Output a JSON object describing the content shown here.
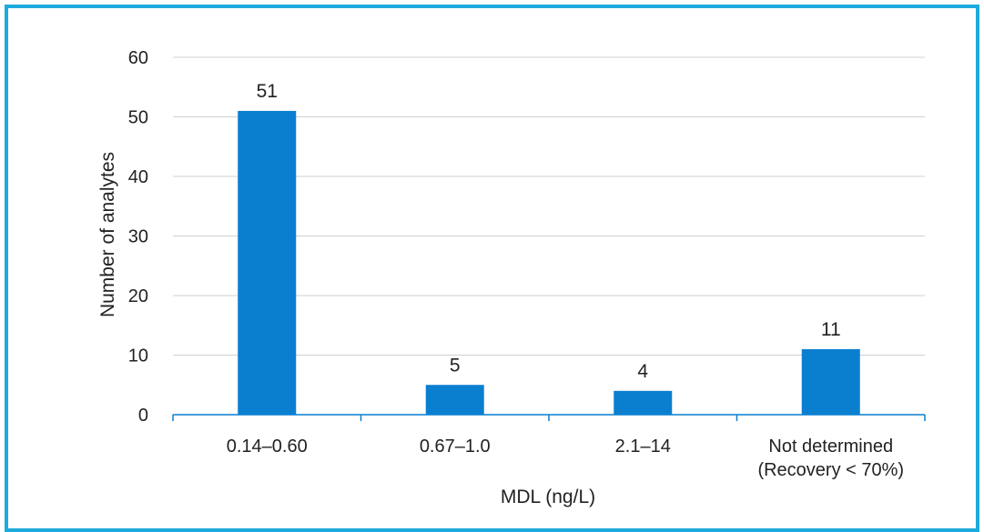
{
  "chart_data": {
    "type": "bar",
    "categories": [
      [
        "0.14–0.60"
      ],
      [
        "0.67–1.0"
      ],
      [
        "2.1–14"
      ],
      [
        "Not determined",
        "(Recovery < 70%)"
      ]
    ],
    "values": [
      51,
      5,
      4,
      11
    ],
    "data_labels": [
      "51",
      "5",
      "4",
      "11"
    ],
    "xlabel": "MDL (ng/L)",
    "ylabel": "Number of analytes",
    "ylim": [
      0,
      60
    ],
    "yticks": [
      "0",
      "10",
      "20",
      "30",
      "40",
      "50",
      "60"
    ],
    "grid": true,
    "bar_color": "#0a7fd0",
    "gridline_color": "#d0d0d0",
    "frame_color": "#1eaadc"
  }
}
